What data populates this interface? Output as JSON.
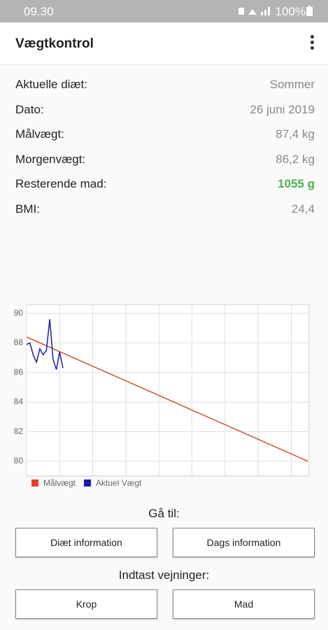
{
  "status_bar": {
    "time": "09.30",
    "battery": "100%"
  },
  "app_bar": {
    "title": "Vægtkontrol"
  },
  "info": [
    {
      "label": "Aktuelle diæt:",
      "value": "Sommer"
    },
    {
      "label": "Dato:",
      "value": "26 juni 2019"
    },
    {
      "label": "Målvægt:",
      "value": "87,4 kg"
    },
    {
      "label": "Morgenvægt:",
      "value": "86,2 kg"
    },
    {
      "label": "Resterende mad:",
      "value": "1055 g"
    },
    {
      "label": "BMI:",
      "value": "24,4"
    }
  ],
  "chart_data": {
    "type": "line",
    "series": [
      {
        "name": "Målvægt",
        "color": "#c4562c",
        "legend_color": "#e8401c",
        "x": [
          0,
          85
        ],
        "values": [
          88.4,
          80.0
        ]
      },
      {
        "name": "Aktuel Vægt",
        "color": "#1b1bb0",
        "legend_color": "#1b1bb0",
        "x": [
          0,
          1,
          2,
          3,
          4,
          5,
          6,
          7,
          8,
          9,
          10,
          11
        ],
        "values": [
          87.9,
          88.0,
          87.2,
          86.7,
          87.6,
          87.2,
          87.5,
          89.6,
          86.9,
          86.2,
          87.4,
          86.3
        ]
      }
    ],
    "xlim": [
      0,
      85.4
    ],
    "xticks": [
      0,
      10,
      20,
      30,
      40,
      50,
      60,
      70,
      80
    ],
    "ylim": [
      79,
      90.6
    ],
    "yticks": [
      80,
      82,
      84,
      86,
      88,
      90
    ],
    "grid": true
  },
  "navigation": {
    "heading": "Gå til:",
    "buttons": [
      "Diæt information",
      "Dags information"
    ]
  },
  "entry": {
    "heading": "Indtast vejninger:",
    "buttons": [
      "Krop",
      "Mad"
    ]
  }
}
